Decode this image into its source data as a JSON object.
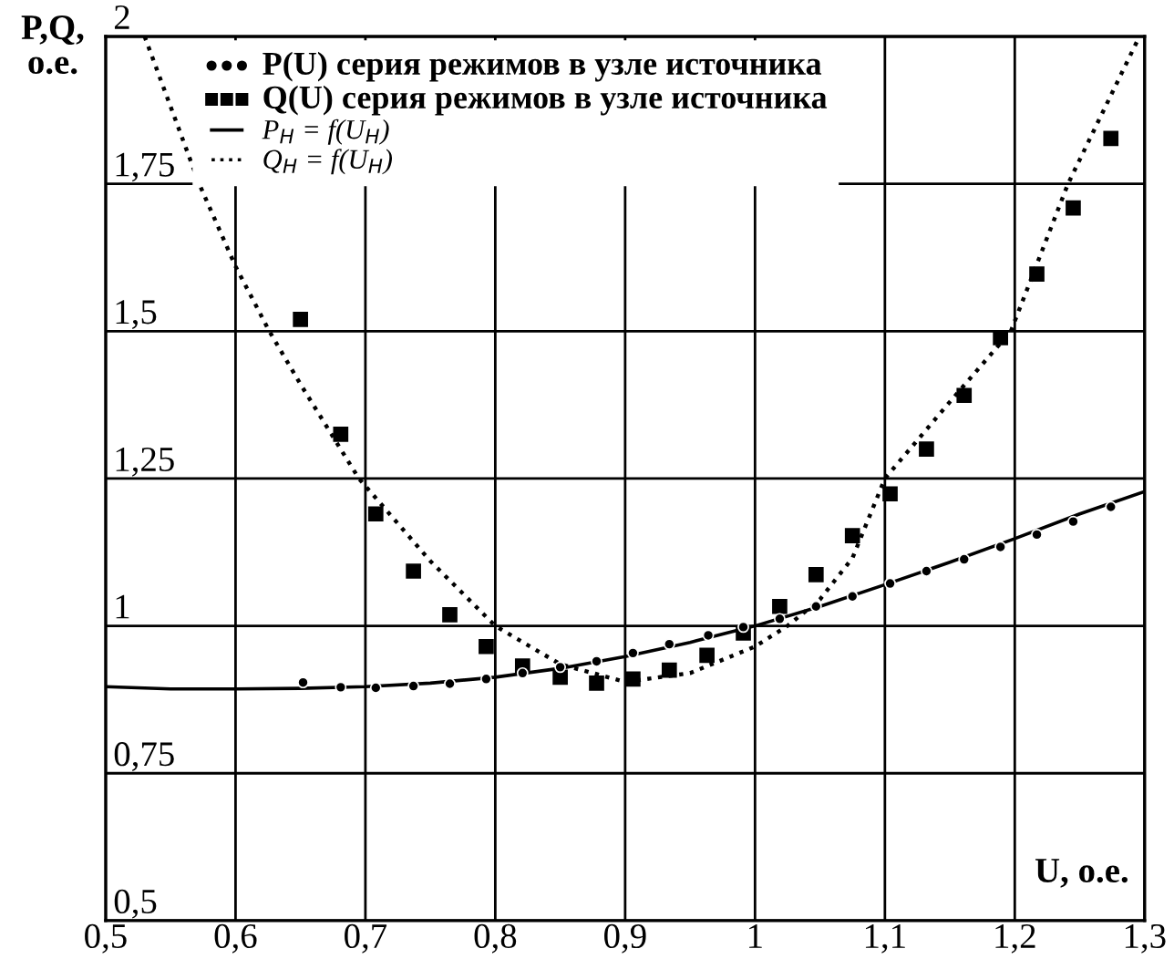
{
  "chart_data": {
    "type": "scatter",
    "xlabel": "U, о.е.",
    "ylabel": "P,Q,\nо.е.",
    "xlim": [
      0.5,
      1.3
    ],
    "ylim": [
      0.5,
      2
    ],
    "xticks": [
      {
        "value": 0.5,
        "label": "0,5"
      },
      {
        "value": 0.6,
        "label": "0,6"
      },
      {
        "value": 0.7,
        "label": "0,7"
      },
      {
        "value": 0.8,
        "label": "0,8"
      },
      {
        "value": 0.9,
        "label": "0,9"
      },
      1,
      {
        "value": 1.1,
        "label": "1,1"
      },
      {
        "value": 1.2,
        "label": "1,2"
      },
      {
        "value": 1.3,
        "label": "1,3"
      }
    ],
    "yticks": [
      {
        "value": 0.5,
        "label": "0,5"
      },
      {
        "value": 0.75,
        "label": "0,75"
      },
      1,
      {
        "value": 1.25,
        "label": "1,25"
      },
      {
        "value": 1.5,
        "label": "1,5"
      },
      {
        "value": 1.75,
        "label": "1,75"
      },
      2
    ],
    "grid": true,
    "legend": "top left",
    "series": [
      {
        "name": "P(U) серия режимов в узле источника",
        "marker": "circle",
        "color": "#000000",
        "x": [
          0.652,
          0.681,
          0.708,
          0.737,
          0.765,
          0.793,
          0.821,
          0.85,
          0.878,
          0.906,
          0.934,
          0.964,
          0.991,
          1.019,
          1.047,
          1.075,
          1.104,
          1.132,
          1.161,
          1.189,
          1.217,
          1.245,
          1.274
        ],
        "values": [
          0.904,
          0.896,
          0.895,
          0.898,
          0.902,
          0.91,
          0.92,
          0.93,
          0.94,
          0.954,
          0.969,
          0.984,
          0.998,
          1.012,
          1.033,
          1.05,
          1.072,
          1.093,
          1.113,
          1.134,
          1.155,
          1.177,
          1.202
        ]
      },
      {
        "name": "Q(U) серия режимов в узле источника",
        "marker": "square",
        "color": "#000000",
        "x": [
          0.65,
          0.681,
          0.708,
          0.737,
          0.765,
          0.793,
          0.821,
          0.85,
          0.878,
          0.906,
          0.934,
          0.963,
          0.991,
          1.019,
          1.047,
          1.075,
          1.104,
          1.132,
          1.161,
          1.189,
          1.217,
          1.245,
          1.274
        ],
        "values": [
          1.52,
          1.325,
          1.19,
          1.093,
          1.019,
          0.965,
          0.932,
          0.913,
          0.903,
          0.91,
          0.925,
          0.95,
          0.988,
          1.033,
          1.087,
          1.153,
          1.224,
          1.3,
          1.391,
          1.489,
          1.597,
          1.709,
          1.827
        ]
      },
      {
        "name": "P$_{H}$ = f(U$_{H}$)",
        "type": "line",
        "line_style": "solid",
        "marker": "none",
        "color": "#000000",
        "x": [
          0.5,
          0.55,
          0.6,
          0.65,
          0.7,
          0.75,
          0.8,
          0.85,
          0.9,
          0.95,
          1.0,
          1.05,
          1.1,
          1.15,
          1.2,
          1.25,
          1.3
        ],
        "values": [
          0.897,
          0.893,
          0.893,
          0.894,
          0.897,
          0.903,
          0.913,
          0.928,
          0.948,
          0.972,
          1.0,
          1.033,
          1.07,
          1.108,
          1.148,
          1.19,
          1.228
        ]
      },
      {
        "name": "Q$_{H}$ = f(U$_{H}$)",
        "type": "line",
        "line_style": "dotted",
        "marker": "none",
        "color": "#000000",
        "x": [
          0.53,
          0.572,
          0.6,
          0.626,
          0.65,
          0.695,
          0.75,
          0.8,
          0.85,
          0.9,
          0.95,
          1.0,
          1.025,
          1.05,
          1.075,
          1.1,
          1.15,
          1.197,
          1.241,
          1.296
        ],
        "values": [
          2.0,
          1.75,
          1.61,
          1.5,
          1.41,
          1.25,
          1.11,
          1.0,
          0.935,
          0.905,
          0.92,
          0.965,
          1.0,
          1.045,
          1.115,
          1.25,
          1.38,
          1.5,
          1.75,
          2.0
        ]
      }
    ]
  }
}
